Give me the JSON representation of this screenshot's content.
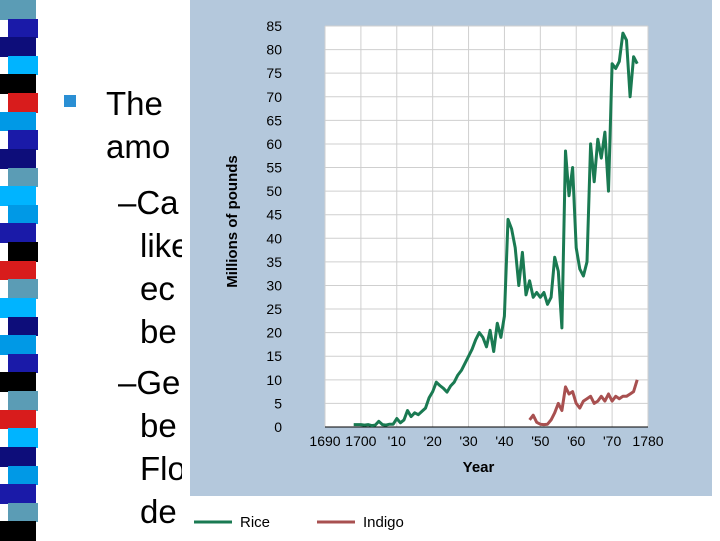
{
  "colors": {
    "stripe_palette": [
      "#5b9cb5",
      "#1a1aa8",
      "#0d0d7a",
      "#00b4ff",
      "#000000",
      "#d81c1c",
      "#0099e6"
    ],
    "bullet": "#2a8fd4",
    "chart_background": "#b4c8dc",
    "rice": "#1a7a52",
    "indigo": "#a85050"
  },
  "slide_text": [
    "The",
    "amo",
    "–Ca",
    "like",
    "ec",
    "be",
    "–Ge",
    "be",
    "Flo",
    "de"
  ],
  "chart_data": {
    "type": "line",
    "title": "",
    "xlabel": "Year",
    "ylabel": "Millions of pounds",
    "xlim": [
      1690,
      1780
    ],
    "ylim": [
      0,
      85
    ],
    "x_ticks": [
      1690,
      1700,
      1710,
      1720,
      1730,
      1740,
      1750,
      1760,
      1770,
      1780
    ],
    "x_tick_labels": [
      "1690",
      "1700",
      "'10",
      "'20",
      "'30",
      "'40",
      "'50",
      "'60",
      "'70",
      "1780"
    ],
    "y_ticks": [
      0,
      5,
      10,
      15,
      20,
      25,
      30,
      35,
      40,
      45,
      50,
      55,
      60,
      65,
      70,
      75,
      80,
      85
    ],
    "grid": true,
    "legend_position": "bottom",
    "series": [
      {
        "name": "Rice",
        "color": "#1a7a52",
        "points": [
          [
            1698,
            0.5
          ],
          [
            1700,
            0.5
          ],
          [
            1701,
            0.4
          ],
          [
            1702,
            0.5
          ],
          [
            1703,
            0.3
          ],
          [
            1704,
            0.4
          ],
          [
            1705,
            1.2
          ],
          [
            1706,
            0.5
          ],
          [
            1707,
            0.4
          ],
          [
            1708,
            0.6
          ],
          [
            1709,
            0.6
          ],
          [
            1710,
            1.8
          ],
          [
            1711,
            0.9
          ],
          [
            1712,
            1.5
          ],
          [
            1713,
            3.5
          ],
          [
            1714,
            2.2
          ],
          [
            1715,
            3.0
          ],
          [
            1716,
            2.6
          ],
          [
            1717,
            3.3
          ],
          [
            1718,
            4.0
          ],
          [
            1719,
            6.2
          ],
          [
            1720,
            7.5
          ],
          [
            1721,
            9.5
          ],
          [
            1722,
            8.8
          ],
          [
            1723,
            8.2
          ],
          [
            1724,
            7.4
          ],
          [
            1725,
            8.7
          ],
          [
            1726,
            9.5
          ],
          [
            1727,
            11.0
          ],
          [
            1728,
            12.0
          ],
          [
            1729,
            13.5
          ],
          [
            1730,
            15.0
          ],
          [
            1731,
            16.5
          ],
          [
            1732,
            18.5
          ],
          [
            1733,
            20.0
          ],
          [
            1734,
            19.0
          ],
          [
            1735,
            17.0
          ],
          [
            1736,
            20.5
          ],
          [
            1737,
            16.0
          ],
          [
            1738,
            22.0
          ],
          [
            1739,
            19.0
          ],
          [
            1740,
            23.5
          ],
          [
            1741,
            44.0
          ],
          [
            1742,
            42.0
          ],
          [
            1743,
            38.0
          ],
          [
            1744,
            30.0
          ],
          [
            1745,
            37.0
          ],
          [
            1746,
            28.0
          ],
          [
            1747,
            31.0
          ],
          [
            1748,
            27.5
          ],
          [
            1749,
            28.5
          ],
          [
            1750,
            27.5
          ],
          [
            1751,
            28.5
          ],
          [
            1752,
            26.0
          ],
          [
            1753,
            27.5
          ],
          [
            1754,
            36.0
          ],
          [
            1755,
            33.0
          ],
          [
            1756,
            21.0
          ],
          [
            1757,
            58.5
          ],
          [
            1758,
            49.0
          ],
          [
            1759,
            55.0
          ],
          [
            1760,
            38.0
          ],
          [
            1761,
            33.5
          ],
          [
            1762,
            32.0
          ],
          [
            1763,
            35.0
          ],
          [
            1764,
            60.0
          ],
          [
            1765,
            52.0
          ],
          [
            1766,
            61.0
          ],
          [
            1767,
            57.0
          ],
          [
            1768,
            62.5
          ],
          [
            1769,
            50.0
          ],
          [
            1770,
            77.0
          ],
          [
            1771,
            76.0
          ],
          [
            1772,
            77.5
          ],
          [
            1773,
            83.5
          ],
          [
            1774,
            82.0
          ],
          [
            1775,
            70.0
          ],
          [
            1776,
            78.5
          ],
          [
            1777,
            77.0
          ]
        ]
      },
      {
        "name": "Indigo",
        "color": "#a85050",
        "points": [
          [
            1747,
            1.5
          ],
          [
            1748,
            2.5
          ],
          [
            1749,
            1.0
          ],
          [
            1750,
            0.6
          ],
          [
            1751,
            0.5
          ],
          [
            1752,
            0.6
          ],
          [
            1753,
            1.5
          ],
          [
            1754,
            3.0
          ],
          [
            1755,
            5.0
          ],
          [
            1756,
            3.5
          ],
          [
            1757,
            8.5
          ],
          [
            1758,
            7.0
          ],
          [
            1759,
            7.5
          ],
          [
            1760,
            5.0
          ],
          [
            1761,
            4.0
          ],
          [
            1762,
            5.5
          ],
          [
            1763,
            6.0
          ],
          [
            1764,
            6.5
          ],
          [
            1765,
            5.0
          ],
          [
            1766,
            5.5
          ],
          [
            1767,
            6.5
          ],
          [
            1768,
            5.5
          ],
          [
            1769,
            7.0
          ],
          [
            1770,
            5.5
          ],
          [
            1771,
            6.5
          ],
          [
            1772,
            6.0
          ],
          [
            1773,
            6.5
          ],
          [
            1774,
            6.5
          ],
          [
            1775,
            7.0
          ],
          [
            1776,
            7.5
          ],
          [
            1777,
            10.0
          ]
        ]
      }
    ]
  }
}
